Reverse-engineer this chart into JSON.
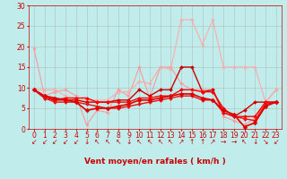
{
  "title": "",
  "xlabel": "Vent moyen/en rafales ( km/h )",
  "ylabel": "",
  "xlim": [
    -0.5,
    23.5
  ],
  "ylim": [
    0,
    30
  ],
  "yticks": [
    0,
    5,
    10,
    15,
    20,
    25,
    30
  ],
  "xticks": [
    0,
    1,
    2,
    3,
    4,
    5,
    6,
    7,
    8,
    9,
    10,
    11,
    12,
    13,
    14,
    15,
    16,
    17,
    18,
    19,
    20,
    21,
    22,
    23
  ],
  "bg_color": "#c0ecec",
  "grid_color": "#b0b0b0",
  "series": [
    {
      "x": [
        0,
        1,
        2,
        3,
        4,
        5,
        6,
        7,
        8,
        9,
        10,
        11,
        12,
        13,
        14,
        15,
        16,
        17,
        18,
        19,
        20,
        21,
        22,
        23
      ],
      "y": [
        19.5,
        8.0,
        9.0,
        9.5,
        8.0,
        1.0,
        4.5,
        4.0,
        9.5,
        8.0,
        15.0,
        7.5,
        15.0,
        15.0,
        11.0,
        9.5,
        9.5,
        9.5,
        3.0,
        2.0,
        1.0,
        2.5,
        6.5,
        9.5
      ],
      "color": "#ff9999",
      "lw": 0.8,
      "marker": "*",
      "ms": 3
    },
    {
      "x": [
        0,
        1,
        2,
        3,
        4,
        5,
        6,
        7,
        8,
        9,
        10,
        11,
        12,
        13,
        14,
        15,
        16,
        17,
        18,
        19,
        20,
        21,
        22,
        23
      ],
      "y": [
        9.5,
        9.5,
        9.5,
        8.0,
        7.0,
        7.0,
        7.0,
        7.0,
        9.0,
        9.0,
        11.5,
        11.0,
        15.0,
        14.5,
        26.5,
        26.5,
        20.5,
        26.5,
        15.0,
        15.0,
        15.0,
        15.0,
        6.5,
        9.5
      ],
      "color": "#ffaaaa",
      "lw": 0.8,
      "marker": "*",
      "ms": 3
    },
    {
      "x": [
        0,
        1,
        2,
        3,
        4,
        5,
        6,
        7,
        8,
        9,
        10,
        11,
        12,
        13,
        14,
        15,
        16,
        17,
        18,
        19,
        20,
        21,
        22,
        23
      ],
      "y": [
        9.5,
        7.5,
        7.0,
        7.0,
        7.0,
        6.5,
        6.5,
        6.5,
        7.0,
        7.0,
        9.5,
        8.0,
        9.5,
        9.5,
        15.0,
        15.0,
        9.0,
        9.5,
        4.0,
        3.0,
        4.5,
        6.5,
        6.5,
        6.5
      ],
      "color": "#cc0000",
      "lw": 1.0,
      "marker": "D",
      "ms": 2
    },
    {
      "x": [
        0,
        1,
        2,
        3,
        4,
        5,
        6,
        7,
        8,
        9,
        10,
        11,
        12,
        13,
        14,
        15,
        16,
        17,
        18,
        19,
        20,
        21,
        22,
        23
      ],
      "y": [
        9.5,
        8.0,
        7.0,
        7.5,
        7.5,
        7.5,
        6.5,
        6.5,
        6.5,
        6.5,
        7.5,
        7.5,
        8.0,
        8.0,
        9.5,
        9.5,
        9.0,
        9.0,
        5.0,
        3.0,
        3.0,
        3.0,
        6.5,
        6.5
      ],
      "color": "#ff0000",
      "lw": 1.0,
      "marker": "D",
      "ms": 2
    },
    {
      "x": [
        0,
        1,
        2,
        3,
        4,
        5,
        6,
        7,
        8,
        9,
        10,
        11,
        12,
        13,
        14,
        15,
        16,
        17,
        18,
        19,
        20,
        21,
        22,
        23
      ],
      "y": [
        9.5,
        7.5,
        6.5,
        6.5,
        6.5,
        6.0,
        5.5,
        5.0,
        5.0,
        5.5,
        6.0,
        6.5,
        7.0,
        7.5,
        8.0,
        8.0,
        7.0,
        7.0,
        4.0,
        3.0,
        2.5,
        2.0,
        6.0,
        6.5
      ],
      "color": "#ee1111",
      "lw": 1.0,
      "marker": "D",
      "ms": 2
    },
    {
      "x": [
        0,
        1,
        2,
        3,
        4,
        5,
        6,
        7,
        8,
        9,
        10,
        11,
        12,
        13,
        14,
        15,
        16,
        17,
        18,
        19,
        20,
        21,
        22,
        23
      ],
      "y": [
        9.5,
        8.0,
        7.5,
        7.0,
        6.5,
        4.5,
        5.0,
        5.0,
        5.5,
        6.0,
        7.0,
        7.0,
        7.5,
        8.0,
        8.5,
        8.5,
        7.5,
        7.0,
        4.5,
        3.5,
        0.5,
        1.5,
        5.5,
        6.5
      ],
      "color": "#dd0000",
      "lw": 1.2,
      "marker": "D",
      "ms": 2.5
    }
  ],
  "wind_arrows": [
    "↙",
    "↙",
    "↙",
    "↙",
    "↙",
    "↓",
    "↖",
    "↖",
    "↖",
    "↓",
    "↖",
    "↖",
    "↖",
    "↖",
    "↗",
    "↑",
    "↑",
    "↗",
    "→",
    "→",
    "↖",
    "↓",
    "↘",
    "↙"
  ],
  "tick_fontsize": 5.5,
  "xlabel_fontsize": 6.5,
  "xlabel_color": "#cc0000",
  "arrow_fontsize": 5.5
}
